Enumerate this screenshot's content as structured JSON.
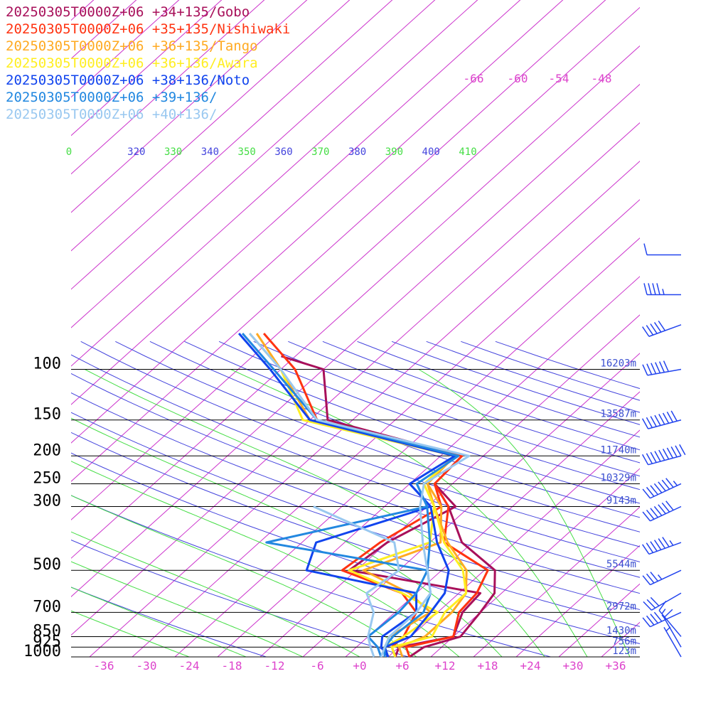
{
  "chart_data": {
    "type": "line",
    "title": "",
    "colors": {
      "isobar": "#000000",
      "height_label": "#3a4fd0",
      "isotherm": "#cc33cc",
      "isotherm_label": "#dd44cc",
      "dry_adiabat": "#4444dd",
      "moist_adiabat": "#44dd44",
      "wind_barb": "#2244ee"
    },
    "pressure_levels": [
      {
        "p": 100,
        "label": "100",
        "height": "16203m"
      },
      {
        "p": 150,
        "label": "150",
        "height": "13587m"
      },
      {
        "p": 200,
        "label": "200",
        "height": "11740m"
      },
      {
        "p": 250,
        "label": "250",
        "height": "10329m"
      },
      {
        "p": 300,
        "label": "300",
        "height": "9143m"
      },
      {
        "p": 500,
        "label": "500",
        "height": "5544m"
      },
      {
        "p": 700,
        "label": "700",
        "height": "2972m"
      },
      {
        "p": 850,
        "label": "850",
        "height": "1430m"
      },
      {
        "p": 925,
        "label": "925",
        "height": "756m"
      },
      {
        "p": 1000,
        "label": "1000",
        "height": "123m"
      }
    ],
    "x_ticks": [
      {
        "t": -36,
        "label": "-36"
      },
      {
        "t": -30,
        "label": "-30"
      },
      {
        "t": -24,
        "label": "-24"
      },
      {
        "t": -18,
        "label": "-18"
      },
      {
        "t": -12,
        "label": "-12"
      },
      {
        "t": -6,
        "label": "-6"
      },
      {
        "t": 0,
        "label": "+0"
      },
      {
        "t": 6,
        "label": "+6"
      },
      {
        "t": 12,
        "label": "+12"
      },
      {
        "t": 18,
        "label": "+18"
      },
      {
        "t": 24,
        "label": "+24"
      },
      {
        "t": 30,
        "label": "+30"
      },
      {
        "t": 36,
        "label": "+36"
      }
    ],
    "top_isotherm_labels": [
      "-66",
      "-60",
      "-54",
      "-48"
    ],
    "theta_labels": [
      {
        "v": "0",
        "c": "#44dd44"
      },
      {
        "v": "320",
        "c": "#4444dd"
      },
      {
        "v": "330",
        "c": "#44dd44"
      },
      {
        "v": "340",
        "c": "#4444dd"
      },
      {
        "v": "350",
        "c": "#44dd44"
      },
      {
        "v": "360",
        "c": "#4444dd"
      },
      {
        "v": "370",
        "c": "#44dd44"
      },
      {
        "v": "380",
        "c": "#4444dd"
      },
      {
        "v": "390",
        "c": "#44dd44"
      },
      {
        "v": "400",
        "c": "#4444dd"
      },
      {
        "v": "410",
        "c": "#44dd44"
      }
    ],
    "series": [
      {
        "name": "20250305T0000Z+06 +34+135/Gobo",
        "color": "#a8105a",
        "temp": [
          [
            1000,
            7
          ],
          [
            925,
            7.5
          ],
          [
            850,
            11
          ],
          [
            700,
            10
          ],
          [
            600,
            9
          ],
          [
            500,
            5.5
          ],
          [
            400,
            -3.5
          ],
          [
            300,
            -11
          ],
          [
            250,
            -16.5
          ],
          [
            200,
            -17
          ],
          [
            150,
            -41.5
          ],
          [
            100,
            -50
          ],
          [
            90,
            -58
          ]
        ],
        "dewp": [
          [
            1000,
            5
          ],
          [
            925,
            4
          ],
          [
            850,
            10
          ],
          [
            700,
            7.5
          ],
          [
            600,
            7
          ],
          [
            500,
            -15
          ],
          [
            400,
            -14
          ],
          [
            300,
            -10
          ],
          [
            250,
            -16.5
          ]
        ]
      },
      {
        "name": "20250305T0000Z+06 +35+135/Nishiwaki",
        "color": "#ff3311",
        "temp": [
          [
            1000,
            7
          ],
          [
            925,
            5
          ],
          [
            850,
            10
          ],
          [
            700,
            7
          ],
          [
            600,
            6.5
          ],
          [
            500,
            4.5
          ],
          [
            400,
            -6
          ],
          [
            300,
            -11
          ],
          [
            250,
            -16.5
          ],
          [
            200,
            -17
          ],
          [
            150,
            -43
          ],
          [
            100,
            -54
          ],
          [
            75,
            -64
          ]
        ],
        "dewp": [
          [
            1000,
            5
          ],
          [
            925,
            3
          ],
          [
            850,
            3
          ],
          [
            700,
            1
          ],
          [
            600,
            -4
          ],
          [
            500,
            -16
          ],
          [
            400,
            -15
          ],
          [
            300,
            -12
          ],
          [
            250,
            -16.5
          ]
        ]
      },
      {
        "name": "20250305T0000Z+06 +36+135/Tango",
        "color": "#ffaa22",
        "temp": [
          [
            1000,
            6
          ],
          [
            925,
            4
          ],
          [
            850,
            6
          ],
          [
            700,
            6
          ],
          [
            600,
            5
          ],
          [
            500,
            1.5
          ],
          [
            400,
            -5.5
          ],
          [
            300,
            -13
          ],
          [
            250,
            -17.5
          ],
          [
            200,
            -18
          ],
          [
            150,
            -44
          ],
          [
            100,
            -56
          ],
          [
            75,
            -65
          ]
        ],
        "dewp": [
          [
            1000,
            4
          ],
          [
            925,
            2
          ],
          [
            850,
            1
          ],
          [
            700,
            3
          ],
          [
            600,
            -3
          ],
          [
            500,
            -13
          ],
          [
            400,
            -6.5
          ],
          [
            300,
            -12
          ],
          [
            250,
            -17.5
          ]
        ]
      },
      {
        "name": "20250305T0000Z+06 +36+136/Awara",
        "color": "#ffee22",
        "temp": [
          [
            1000,
            5
          ],
          [
            925,
            3
          ],
          [
            850,
            7
          ],
          [
            700,
            5
          ],
          [
            600,
            5
          ],
          [
            500,
            1
          ],
          [
            400,
            -6
          ],
          [
            300,
            -13
          ],
          [
            250,
            -18
          ],
          [
            200,
            -18
          ],
          [
            150,
            -45
          ],
          [
            100,
            -56
          ],
          [
            75,
            -66
          ]
        ],
        "dewp": [
          [
            1000,
            4
          ],
          [
            925,
            2
          ],
          [
            850,
            3
          ],
          [
            700,
            4
          ],
          [
            600,
            -4
          ],
          [
            500,
            -15
          ],
          [
            400,
            -8
          ],
          [
            300,
            -13
          ],
          [
            250,
            -18
          ]
        ]
      },
      {
        "name": "20250305T0000Z+06 +38+136/Noto",
        "color": "#1144ee",
        "temp": [
          [
            1000,
            4
          ],
          [
            925,
            2
          ],
          [
            850,
            4
          ],
          [
            700,
            3
          ],
          [
            600,
            2
          ],
          [
            500,
            -1
          ],
          [
            400,
            -7
          ],
          [
            300,
            -13.5
          ],
          [
            250,
            -20
          ],
          [
            200,
            -18
          ],
          [
            150,
            -44
          ],
          [
            100,
            -57.5
          ],
          [
            75,
            -67.5
          ]
        ],
        "dewp": [
          [
            1000,
            4
          ],
          [
            925,
            1.5
          ],
          [
            850,
            0
          ],
          [
            700,
            1
          ],
          [
            600,
            -2
          ],
          [
            500,
            -21
          ],
          [
            400,
            -24
          ],
          [
            300,
            -13.5
          ],
          [
            250,
            -20
          ]
        ]
      },
      {
        "name": "20250305T0000Z+06 +39+136/",
        "color": "#2288e0",
        "temp": [
          [
            1000,
            3.5
          ],
          [
            925,
            2
          ],
          [
            850,
            1.5
          ],
          [
            700,
            2
          ],
          [
            600,
            0
          ],
          [
            500,
            -4
          ],
          [
            400,
            -8
          ],
          [
            300,
            -14
          ],
          [
            250,
            -19
          ],
          [
            200,
            -17.5
          ],
          [
            150,
            -43
          ],
          [
            100,
            -57
          ],
          [
            75,
            -67
          ]
        ],
        "dewp": [
          [
            1000,
            3
          ],
          [
            925,
            1
          ],
          [
            850,
            -2
          ],
          [
            700,
            -1.5
          ],
          [
            600,
            -2
          ],
          [
            500,
            -4
          ],
          [
            400,
            -31
          ],
          [
            300,
            -14
          ],
          [
            250,
            -19
          ]
        ]
      },
      {
        "name": "20250305T0000Z+06 +40+136/",
        "color": "#99c8f0",
        "temp": [
          [
            1000,
            3
          ],
          [
            925,
            2
          ],
          [
            850,
            1
          ],
          [
            700,
            1
          ],
          [
            600,
            0
          ],
          [
            500,
            -4
          ],
          [
            400,
            -9
          ],
          [
            300,
            -15
          ],
          [
            250,
            -18
          ],
          [
            200,
            -16
          ],
          [
            150,
            -43
          ],
          [
            100,
            -56
          ],
          [
            75,
            -66
          ]
        ],
        "dewp": [
          [
            1000,
            2
          ],
          [
            925,
            0
          ],
          [
            850,
            -2
          ],
          [
            700,
            -5
          ],
          [
            600,
            -9
          ],
          [
            500,
            -8
          ],
          [
            400,
            -13
          ],
          [
            300,
            -30
          ]
        ]
      }
    ],
    "wind_barbs": [
      {
        "p": 100,
        "dir": 260,
        "kt": 60
      },
      {
        "p": 150,
        "dir": 255,
        "kt": 80
      },
      {
        "p": 200,
        "dir": 255,
        "kt": 100
      },
      {
        "p": 250,
        "dir": 245,
        "kt": 75
      },
      {
        "p": 300,
        "dir": 245,
        "kt": 70
      },
      {
        "p": 400,
        "dir": 250,
        "kt": 65
      },
      {
        "p": 500,
        "dir": 245,
        "kt": 35
      },
      {
        "p": 600,
        "dir": 240,
        "kt": 30
      },
      {
        "p": 700,
        "dir": 245,
        "kt": 45
      },
      {
        "p": 850,
        "dir": 320,
        "kt": 15
      },
      {
        "p": 925,
        "dir": 330,
        "kt": 10
      },
      {
        "p": 1000,
        "dir": 330,
        "kt": 5
      },
      {
        "p": 55,
        "dir": 270,
        "kt": 45
      },
      {
        "p": 70,
        "dir": 250,
        "kt": 50
      },
      {
        "p": 40,
        "dir": 270,
        "kt": 10
      }
    ]
  }
}
